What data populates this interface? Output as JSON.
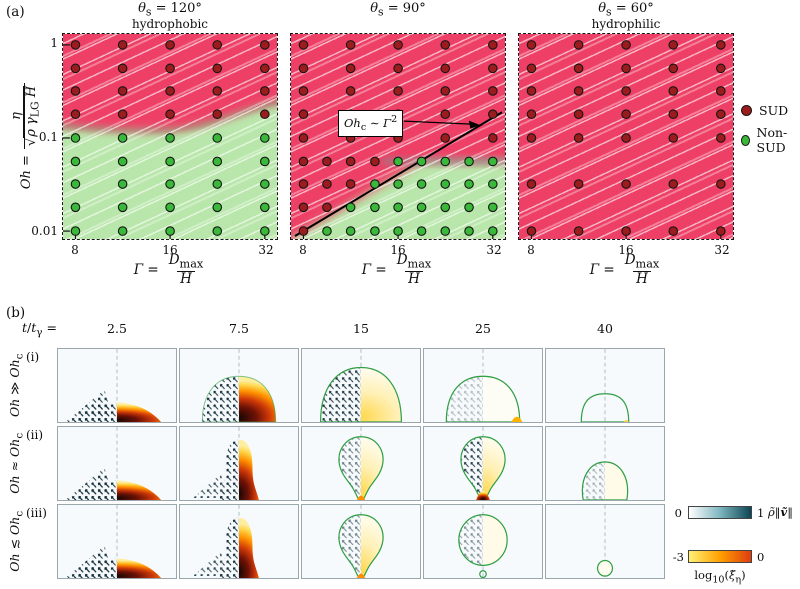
{
  "panel_a": {
    "label": "(a)",
    "ylabel": {
      "pre_html": "<i>Oh</i> =",
      "num_html": "<i>η</i>",
      "den_html": "√<span class='ol'><i>ρ γ</i><sub>LG</sub> <i>H</i></span>"
    },
    "xlabel": {
      "pre_html": "<i>Γ</i> =",
      "num_html": "<i>D</i><sub>max</sub>",
      "den_html": "<i>H</i>"
    },
    "legend": [
      {
        "key": "sud",
        "label": "SUD"
      },
      {
        "key": "nonsud",
        "label": "Non-SUD"
      }
    ],
    "colors": {
      "sud_bg": "#ee4066",
      "nonsud_bg": "#b9e7ab",
      "sud_point": "#9b1c1c",
      "nonsud_point": "#3ab83a"
    }
  },
  "chart_data": [
    {
      "type": "scatter",
      "id": "theta-120",
      "title_html": "<i>θ</i><sub>s</sub> = 120°",
      "subtitle": "hydrophobic",
      "xscale": "log",
      "yscale": "log",
      "xticks": [
        8,
        16,
        32
      ],
      "yticks": [
        "1",
        "0.1",
        "0.01"
      ],
      "xlim": [
        7.3,
        35
      ],
      "ylim": [
        0.0082,
        1.31
      ],
      "rows": [
        {
          "oh": 1,
          "sud": [
            8,
            11.3,
            16,
            22.6,
            32
          ],
          "nonsud": []
        },
        {
          "oh": 0.56,
          "sud": [
            8,
            11.3,
            16,
            22.6,
            32
          ],
          "nonsud": []
        },
        {
          "oh": 0.32,
          "sud": [
            8,
            11.3,
            16,
            22.6,
            32
          ],
          "nonsud": []
        },
        {
          "oh": 0.18,
          "sud": [
            8,
            11.3,
            16,
            22.6,
            32
          ],
          "nonsud": []
        },
        {
          "oh": 0.1,
          "sud": [],
          "nonsud": [
            8,
            11.3,
            16,
            22.6,
            32
          ]
        },
        {
          "oh": 0.056,
          "sud": [],
          "nonsud": [
            8,
            11.3,
            16,
            22.6,
            32
          ]
        },
        {
          "oh": 0.032,
          "sud": [],
          "nonsud": [
            8,
            11.3,
            16,
            22.6,
            32
          ]
        },
        {
          "oh": 0.018,
          "sud": [],
          "nonsud": [
            8,
            11.3,
            16,
            22.6,
            32
          ]
        },
        {
          "oh": 0.01,
          "sud": [],
          "nonsud": [
            8,
            11.3,
            16,
            22.6,
            32
          ]
        }
      ]
    },
    {
      "type": "scatter",
      "id": "theta-90",
      "title_html": "<i>θ</i><sub>s</sub> = 90°",
      "subtitle": "",
      "xscale": "log",
      "yscale": "log",
      "xticks": [
        8,
        16,
        32
      ],
      "annotation_html": "<i>Oh</i><sub>c</sub> ∼ <i>Γ</i><sup>2</sup>",
      "scaling_line": {
        "relation": "Ohc ∝ Γ²",
        "points": [
          [
            8,
            0.01
          ],
          [
            33,
            0.17
          ]
        ]
      },
      "rows": [
        {
          "oh": 1,
          "sud": [
            8,
            11.3,
            16,
            22.6,
            32
          ],
          "nonsud": []
        },
        {
          "oh": 0.56,
          "sud": [
            8,
            11.3,
            16,
            22.6,
            32
          ],
          "nonsud": []
        },
        {
          "oh": 0.32,
          "sud": [
            8,
            11.3,
            16,
            22.6,
            32
          ],
          "nonsud": []
        },
        {
          "oh": 0.18,
          "sud": [
            8,
            11.3,
            16,
            22.6,
            32
          ],
          "nonsud": []
        },
        {
          "oh": 0.1,
          "sud": [
            8,
            11.3,
            16,
            22.6,
            32
          ],
          "nonsud": []
        },
        {
          "oh": 0.056,
          "sud": [
            8,
            9.5,
            11.3,
            13.5
          ],
          "nonsud": [
            16,
            19,
            22.6,
            26.9,
            32
          ]
        },
        {
          "oh": 0.032,
          "sud": [
            8,
            9.5,
            11.3
          ],
          "nonsud": [
            13.5,
            16,
            19,
            22.6,
            26.9,
            32
          ]
        },
        {
          "oh": 0.018,
          "sud": [
            8,
            9.5
          ],
          "nonsud": [
            11.3,
            13.5,
            16,
            19,
            22.6,
            26.9,
            32
          ]
        },
        {
          "oh": 0.01,
          "sud": [
            8
          ],
          "nonsud": [
            9.5,
            11.3,
            13.5,
            16,
            19,
            22.6,
            26.9,
            32
          ]
        }
      ]
    },
    {
      "type": "scatter",
      "id": "theta-60",
      "title_html": "<i>θ</i><sub>s</sub> = 60°",
      "subtitle": "hydrophilic",
      "xscale": "log",
      "yscale": "log",
      "xticks": [
        8,
        16,
        32
      ],
      "rows": [
        {
          "oh": 1,
          "sud": [
            8,
            11.3,
            16,
            22.6,
            32
          ],
          "nonsud": []
        },
        {
          "oh": 0.56,
          "sud": [
            8,
            11.3,
            16,
            22.6,
            32
          ],
          "nonsud": []
        },
        {
          "oh": 0.32,
          "sud": [
            8,
            11.3,
            16,
            22.6,
            32
          ],
          "nonsud": []
        },
        {
          "oh": 0.18,
          "sud": [
            8,
            11.3,
            16,
            22.6,
            32
          ],
          "nonsud": []
        },
        {
          "oh": 0.1,
          "sud": [
            8,
            11.3,
            16,
            22.6,
            32
          ],
          "nonsud": []
        },
        {
          "oh": 0.032,
          "sud": [
            8,
            11.3,
            16,
            22.6,
            32
          ],
          "nonsud": []
        },
        {
          "oh": 0.01,
          "sud": [
            8,
            11.3,
            16,
            22.6,
            32
          ],
          "nonsud": []
        }
      ]
    }
  ],
  "panel_b": {
    "label": "(b)",
    "time_prefix_html": "<i>t</i>/<i>t</i><sub>γ</sub> =",
    "times": [
      "2.5",
      "7.5",
      "15",
      "25",
      "40"
    ],
    "rows": [
      {
        "index": "(i)",
        "regime_html": "<i>Oh</i> ≫ <i>Oh</i><sub>c</sub>"
      },
      {
        "index": "(ii)",
        "regime_html": "<i>Oh</i> ≈ <i>Oh</i><sub>c</sub>"
      },
      {
        "index": "(iii)",
        "regime_html": "<i>Oh</i> ≲ <i>Oh</i><sub>c</sub>"
      }
    ],
    "cells": [
      [
        "pancake",
        "dome",
        "dome2",
        "domeOutline",
        "capEmpty"
      ],
      [
        "pancake",
        "jet",
        "pearMid",
        "pearHot",
        "roundOutline"
      ],
      [
        "pancake",
        "jet",
        "pearMid",
        "detached",
        "tiny"
      ]
    ],
    "colorbars": [
      {
        "min": "0",
        "max": "1",
        "label_html": "<i>ρ̃</i>‖<b><i>ṽ</i></b>‖",
        "colors": [
          "#ffffff",
          "#7fb6bf",
          "#0c4553"
        ]
      },
      {
        "min": "-3",
        "max": "0",
        "label_html": "log<sub>10</sub>(<i>ξ̃</i><sub>η</sub>)",
        "colors": [
          "#fff176",
          "#ffa000",
          "#dd3d10"
        ]
      }
    ]
  }
}
